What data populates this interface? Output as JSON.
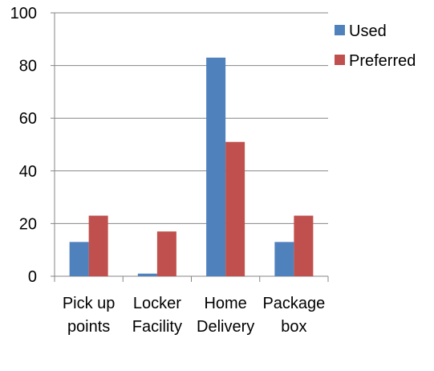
{
  "chart_data": {
    "type": "bar",
    "categories": [
      [
        "Pick up",
        "points"
      ],
      [
        "Locker",
        "Facility"
      ],
      [
        "Home",
        "Delivery"
      ],
      [
        "Package",
        "box"
      ]
    ],
    "series": [
      {
        "name": "Used",
        "color": "#4F81BD",
        "values": [
          13,
          1,
          83,
          13
        ]
      },
      {
        "name": "Preferred",
        "color": "#C0504D",
        "values": [
          23,
          17,
          51,
          23
        ]
      }
    ],
    "yticks": [
      0,
      20,
      40,
      60,
      80,
      100
    ],
    "ylim": [
      0,
      100
    ],
    "grid": true,
    "legend_position": "right"
  }
}
